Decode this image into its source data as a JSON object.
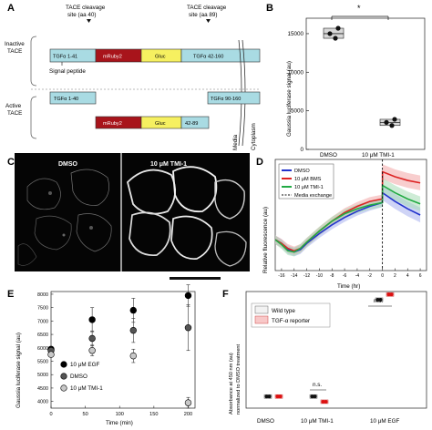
{
  "panels": {
    "a": {
      "letter": "A",
      "top_note_1": "TACE cleavage",
      "top_note_1b": "site (aa 40)",
      "top_note_2": "TACE cleavage",
      "top_note_2b": "site (aa 89)",
      "inactive_label_1": "Inactive",
      "inactive_label_2": "TACE",
      "active_label_1": "Active",
      "active_label_2": "TACE",
      "signal_peptide": "Signal peptide",
      "media": "Media",
      "cytoplasm": "Cytoplasm",
      "seg_tgfa_1_41": "TGFα 1-41",
      "seg_mruby": "mRuby2",
      "seg_gluc": "Gluc",
      "seg_tgfa_42_160": "TGFα 42-160",
      "seg_tgfa_1_40": "TGFα 1-40",
      "seg_tgfa_90_160": "TGFα 90-160",
      "seg_mruby_b": "mRuby2",
      "seg_gluc_b": "Gluc",
      "seg_42_89": "42-89",
      "colors": {
        "tgfa": "#a9dbe3",
        "mruby": "#a8141b",
        "gluc": "#f6f060"
      }
    },
    "b": {
      "letter": "B",
      "ylabel": "Gaussia luciferase signal (au)",
      "sig": "*",
      "ticks": [
        "0",
        "5000",
        "10000",
        "15000"
      ],
      "cat1": "DMSO",
      "cat2": "10 μM TMI-1"
    },
    "c": {
      "letter": "C",
      "label1": "DMSO",
      "label2": "10 μM TMI-1"
    },
    "d": {
      "letter": "D",
      "ylabel": "Relative fluorescence (au)",
      "xlabel": "Time (hr)",
      "ticks_x": [
        "-16",
        "-14",
        "-12",
        "-10",
        "-8",
        "-6",
        "-4",
        "-2",
        "0",
        "2",
        "4",
        "6"
      ],
      "legend": [
        "DMSO",
        "10 μM BMS",
        "10 μM TMI-1",
        "Media exchange"
      ]
    },
    "e": {
      "letter": "E",
      "ylabel": "Gaussia luciferase signal (au)",
      "xlabel": "Time (min)",
      "ticks_y": [
        "4000",
        "4500",
        "5000",
        "5500",
        "6000",
        "6500",
        "7000",
        "7500",
        "8000"
      ],
      "ticks_x": [
        "0",
        "50",
        "100",
        "150",
        "200"
      ],
      "legend": [
        "10 μM EGF",
        "DMSO",
        "10 μM TMI-1"
      ]
    },
    "f": {
      "letter": "F",
      "ylabel_1": "Absorbance at 450 nm (au)",
      "ylabel_2": "normalized to DMSO treatment",
      "legend": [
        "Wild type",
        "TGF-α reporter"
      ],
      "cats": [
        "DMSO",
        "10 μM TMI-1",
        "10 μM EGF"
      ],
      "ns1": "n.s.",
      "ns2": "n.s."
    }
  },
  "chart_data": [
    {
      "panel": "B",
      "type": "box",
      "ylabel": "Gaussia luciferase signal (au)",
      "ylim": [
        0,
        17000
      ],
      "categories": [
        "DMSO",
        "10 μM TMI-1"
      ],
      "values": [
        [
          15000,
          14400,
          15700
        ],
        [
          3500,
          3100,
          3900
        ]
      ]
    },
    {
      "panel": "D",
      "type": "line",
      "ylabel": "Relative fluorescence (au)",
      "xlabel": "Time (hr)",
      "xlim": [
        -17,
        7
      ],
      "series": [
        {
          "name": "DMSO",
          "color": "#2233cc",
          "values": [
            [
              -17,
              0.95
            ],
            [
              -16,
              0.92
            ],
            [
              -15,
              0.87
            ],
            [
              -14,
              0.85
            ],
            [
              -13,
              0.87
            ],
            [
              -12,
              0.92
            ],
            [
              -10,
              1.0
            ],
            [
              -8,
              1.07
            ],
            [
              -6,
              1.13
            ],
            [
              -4,
              1.18
            ],
            [
              -2,
              1.22
            ],
            [
              0,
              1.25
            ],
            [
              0.01,
              1.33
            ],
            [
              2,
              1.26
            ],
            [
              4,
              1.2
            ],
            [
              6,
              1.15
            ]
          ]
        },
        {
          "name": "10 μM BMS",
          "color": "#dd2222",
          "values": [
            [
              -17,
              0.95
            ],
            [
              -16,
              0.92
            ],
            [
              -15,
              0.88
            ],
            [
              -14,
              0.86
            ],
            [
              -13,
              0.88
            ],
            [
              -12,
              0.93
            ],
            [
              -10,
              1.02
            ],
            [
              -8,
              1.1
            ],
            [
              -6,
              1.17
            ],
            [
              -4,
              1.22
            ],
            [
              -2,
              1.26
            ],
            [
              0,
              1.28
            ],
            [
              0.01,
              1.5
            ],
            [
              2,
              1.46
            ],
            [
              4,
              1.43
            ],
            [
              6,
              1.41
            ]
          ]
        },
        {
          "name": "10 μM TMI-1",
          "color": "#22aa44",
          "values": [
            [
              -17,
              0.95
            ],
            [
              -16,
              0.91
            ],
            [
              -15,
              0.86
            ],
            [
              -14,
              0.85
            ],
            [
              -13,
              0.88
            ],
            [
              -12,
              0.93
            ],
            [
              -10,
              1.02
            ],
            [
              -8,
              1.1
            ],
            [
              -6,
              1.16
            ],
            [
              -4,
              1.2
            ],
            [
              -2,
              1.23
            ],
            [
              0,
              1.25
            ],
            [
              0.01,
              1.39
            ],
            [
              2,
              1.33
            ],
            [
              4,
              1.28
            ],
            [
              6,
              1.24
            ]
          ]
        }
      ],
      "vline": 0
    },
    {
      "panel": "E",
      "type": "scatter",
      "ylabel": "Gaussia luciferase signal (au)",
      "xlabel": "Time (min)",
      "xlim": [
        0,
        210
      ],
      "ylim": [
        3750,
        8100
      ],
      "series": [
        {
          "name": "10 μM EGF",
          "color": "#000000",
          "x": [
            0,
            60,
            120,
            200
          ],
          "values": [
            5950,
            7050,
            7400,
            7950
          ],
          "err": [
            100,
            450,
            450,
            400
          ]
        },
        {
          "name": "DMSO",
          "color": "#555555",
          "x": [
            0,
            60,
            120,
            200
          ],
          "values": [
            5900,
            6350,
            6650,
            6750
          ],
          "err": [
            80,
            280,
            450,
            850
          ]
        },
        {
          "name": "10 μM TMI-1",
          "color": "#c8c8c8",
          "x": [
            0,
            60,
            120,
            200
          ],
          "values": [
            5750,
            5900,
            5700,
            3950
          ],
          "err": [
            80,
            200,
            250,
            200
          ]
        }
      ]
    },
    {
      "panel": "F",
      "type": "scatter",
      "ylabel": "Absorbance at 450 nm (au) normalized to DMSO treatment",
      "ylim": [
        0,
        10
      ],
      "categories": [
        "DMSO",
        "10 μM TMI-1",
        "10 μM EGF"
      ],
      "series": [
        {
          "name": "Wild type",
          "color": "#111111",
          "values": [
            1.0,
            1.0,
            9.3
          ]
        },
        {
          "name": "TGF-α reporter",
          "color": "#dd1111",
          "values": [
            1.0,
            0.55,
            9.75
          ]
        }
      ]
    }
  ]
}
